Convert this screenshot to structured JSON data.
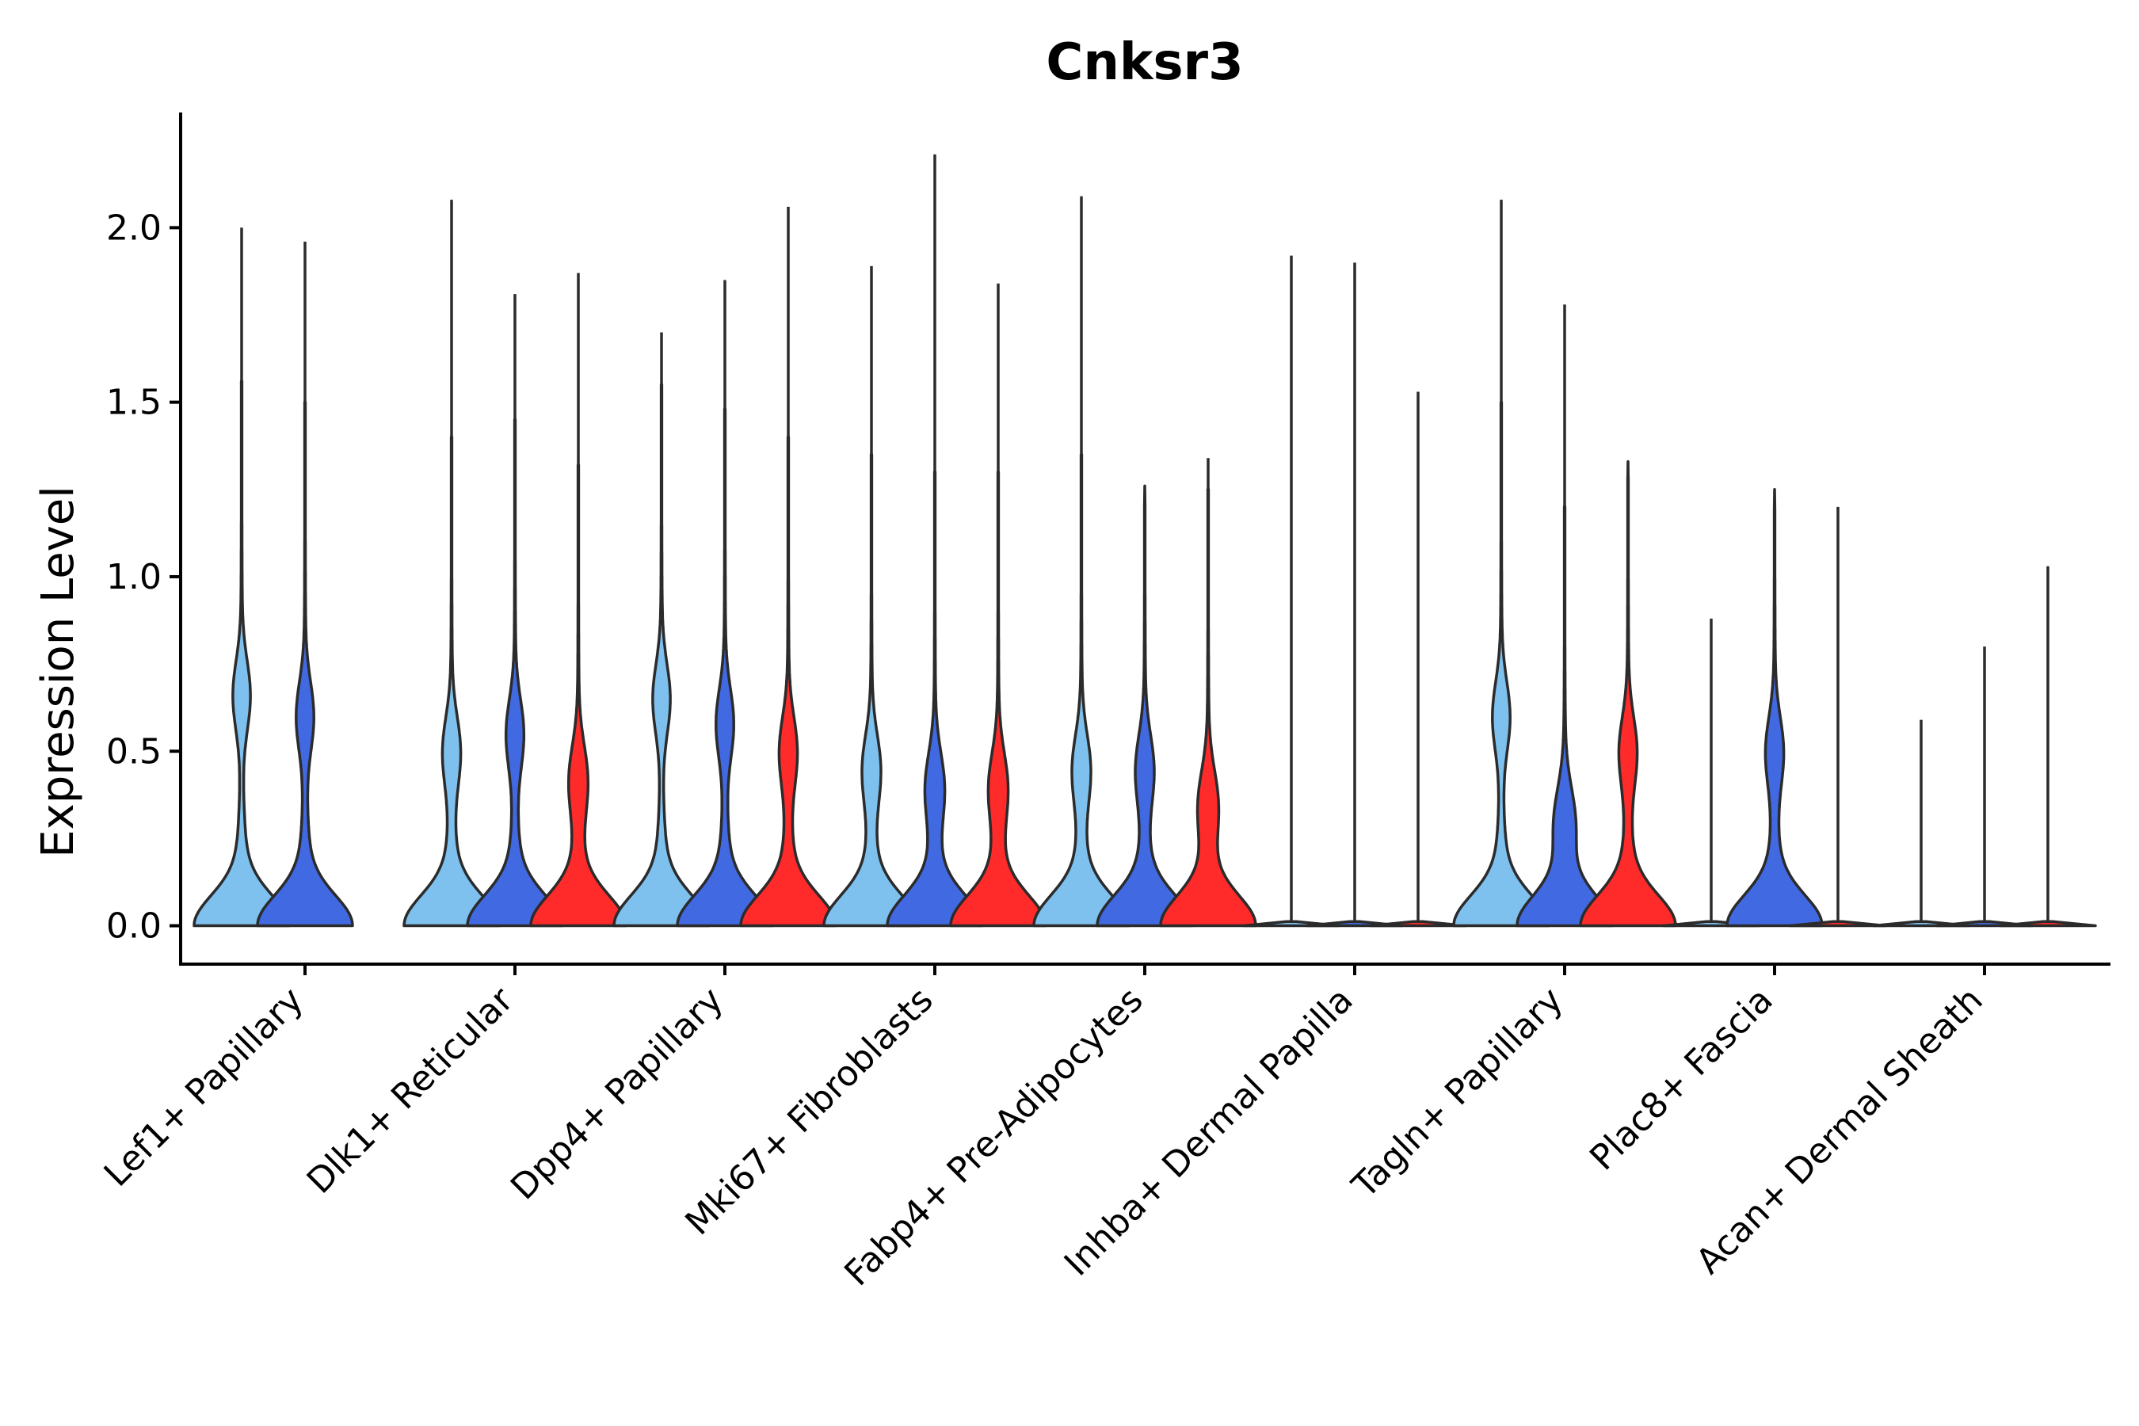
{
  "chart_data": {
    "type": "violin",
    "title": "Cnksr3",
    "xlabel": "",
    "ylabel": "Expression Level",
    "ylim": [
      -0.11,
      2.33
    ],
    "yticks": [
      0.0,
      0.5,
      1.0,
      1.5,
      2.0
    ],
    "ytick_labels": [
      "0.0",
      "0.5",
      "1.0",
      "1.5",
      "2.0"
    ],
    "grid": false,
    "legend": "none",
    "series_colors": [
      "#7ec0ee",
      "#4169e1",
      "#ff2a2a"
    ],
    "categories": [
      "Lef1+ Papillary",
      "Dlk1+ Reticular",
      "Dpp4+ Papillary",
      "Mki67+ Fibroblasts",
      "Fabp4+ Pre-Adipocytes",
      "Inhba+ Dermal Papilla",
      "Tagln+ Papillary",
      "Plac8+ Fascia",
      "Acan+ Dermal Sheath"
    ],
    "groups": [
      {
        "category": "Lef1+ Papillary",
        "violins": [
          {
            "series": 0,
            "max": 2.0,
            "upper_mode": 0.66,
            "shape": "bimodal"
          },
          {
            "series": 1,
            "max": 1.96,
            "upper_mode": 0.6,
            "shape": "bimodal"
          }
        ]
      },
      {
        "category": "Dlk1+ Reticular",
        "violins": [
          {
            "series": 0,
            "max": 2.08,
            "upper_mode": 0.5,
            "shape": "bimodal"
          },
          {
            "series": 1,
            "max": 1.81,
            "upper_mode": 0.55,
            "shape": "bimodal"
          },
          {
            "series": 2,
            "max": 1.87,
            "upper_mode": 0.42,
            "shape": "bimodal"
          }
        ]
      },
      {
        "category": "Dpp4+ Papillary",
        "violins": [
          {
            "series": 0,
            "max": 1.7,
            "upper_mode": 0.65,
            "shape": "bimodal"
          },
          {
            "series": 1,
            "max": 1.85,
            "upper_mode": 0.58,
            "shape": "bimodal"
          },
          {
            "series": 2,
            "max": 2.06,
            "upper_mode": 0.5,
            "shape": "bimodal"
          }
        ]
      },
      {
        "category": "Mki67+ Fibroblasts",
        "violins": [
          {
            "series": 0,
            "max": 1.89,
            "upper_mode": 0.45,
            "shape": "bimodal"
          },
          {
            "series": 1,
            "max": 2.21,
            "upper_mode": 0.4,
            "shape": "bimodal"
          },
          {
            "series": 2,
            "max": 1.84,
            "upper_mode": 0.4,
            "shape": "bimodal"
          }
        ]
      },
      {
        "category": "Fabp4+ Pre-Adipocytes",
        "violins": [
          {
            "series": 0,
            "max": 2.09,
            "upper_mode": 0.45,
            "shape": "bimodal"
          },
          {
            "series": 1,
            "max": 1.26,
            "upper_mode": 0.45,
            "shape": "bimodal"
          },
          {
            "series": 2,
            "max": 1.34,
            "upper_mode": 0.35,
            "shape": "bimodal"
          }
        ]
      },
      {
        "category": "Inhba+ Dermal Papilla",
        "violins": [
          {
            "series": 0,
            "max": 1.92,
            "upper_mode": 0.0,
            "shape": "flat"
          },
          {
            "series": 1,
            "max": 1.9,
            "upper_mode": 0.0,
            "shape": "flat"
          },
          {
            "series": 2,
            "max": 1.53,
            "upper_mode": 0.0,
            "shape": "flat"
          }
        ]
      },
      {
        "category": "Tagln+ Papillary",
        "violins": [
          {
            "series": 0,
            "max": 2.08,
            "upper_mode": 0.6,
            "shape": "bimodal"
          },
          {
            "series": 1,
            "max": 1.78,
            "upper_mode": 0.3,
            "shape": "bimodal"
          },
          {
            "series": 2,
            "max": 1.33,
            "upper_mode": 0.5,
            "shape": "bimodal"
          }
        ]
      },
      {
        "category": "Plac8+ Fascia",
        "violins": [
          {
            "series": 0,
            "max": 0.88,
            "upper_mode": 0.0,
            "shape": "flat"
          },
          {
            "series": 1,
            "max": 1.25,
            "upper_mode": 0.5,
            "shape": "bimodal"
          },
          {
            "series": 2,
            "max": 1.2,
            "upper_mode": 0.0,
            "shape": "flat"
          }
        ]
      },
      {
        "category": "Acan+ Dermal Sheath",
        "violins": [
          {
            "series": 0,
            "max": 0.59,
            "upper_mode": 0.0,
            "shape": "flat"
          },
          {
            "series": 1,
            "max": 0.8,
            "upper_mode": 0.0,
            "shape": "flat"
          },
          {
            "series": 2,
            "max": 1.03,
            "upper_mode": 0.0,
            "shape": "flat"
          }
        ]
      }
    ]
  }
}
